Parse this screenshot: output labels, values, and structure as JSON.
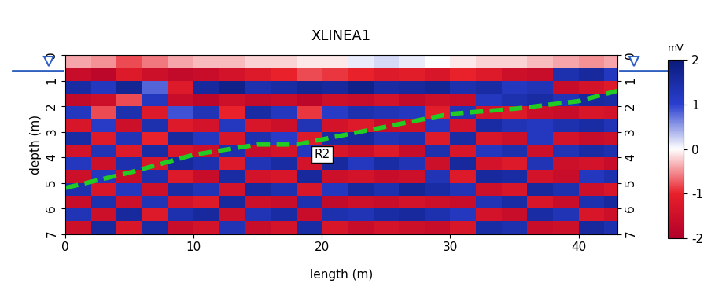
{
  "chart_data": {
    "type": "heatmap",
    "title": "XLINEA1",
    "x_label": "length (m)",
    "y_label": "depth (m)",
    "xlim": [
      0,
      43
    ],
    "xticks": [
      0,
      10,
      20,
      30,
      40
    ],
    "ylim": [
      7,
      0
    ],
    "yticks": [
      0,
      1,
      2,
      3,
      4,
      5,
      6,
      7
    ],
    "x": [
      1,
      3,
      5,
      7,
      9,
      11,
      13,
      15,
      17,
      19,
      21,
      23,
      25,
      27,
      29,
      31,
      33,
      35,
      37,
      39,
      41,
      43
    ],
    "y": [
      0.25,
      0.75,
      1.25,
      1.75,
      2.25,
      2.75,
      3.25,
      3.75,
      4.25,
      4.75,
      5.25,
      5.75,
      6.25,
      6.75
    ],
    "cells": [
      [
        -0.4,
        -0.5,
        -0.8,
        -0.6,
        -0.4,
        -0.3,
        -0.3,
        -0.2,
        -0.2,
        -0.1,
        -0.1,
        0.1,
        0.2,
        0.1,
        0.0,
        -0.1,
        -0.2,
        -0.2,
        -0.3,
        -0.4,
        -0.5,
        -0.4
      ],
      [
        -1.6,
        -1.8,
        -1.2,
        -1.5,
        -1.7,
        -1.6,
        -1.4,
        -1.2,
        -1.0,
        -0.8,
        -0.9,
        -1.0,
        -1.2,
        -1.1,
        -1.3,
        -1.0,
        -1.2,
        -1.5,
        -1.6,
        1.4,
        1.6,
        1.2
      ],
      [
        1.5,
        1.2,
        1.7,
        0.8,
        -1.2,
        1.6,
        1.8,
        1.4,
        1.5,
        1.7,
        1.6,
        1.8,
        1.5,
        1.6,
        1.7,
        1.4,
        1.5,
        1.2,
        1.3,
        -1.6,
        -1.4,
        -1.2
      ],
      [
        -1.7,
        -1.5,
        -0.8,
        1.2,
        -1.6,
        -1.8,
        -1.5,
        -1.7,
        -1.6,
        -1.8,
        -1.5,
        -1.6,
        -1.4,
        -1.7,
        -1.5,
        -1.6,
        1.2,
        1.4,
        1.5,
        1.3,
        1.6,
        1.5
      ],
      [
        1.2,
        -0.8,
        1.4,
        -1.2,
        0.9,
        1.3,
        -1.0,
        1.5,
        1.2,
        -0.9,
        1.1,
        1.4,
        1.3,
        1.2,
        -1.1,
        1.3,
        -1.4,
        -1.2,
        -1.5,
        -1.6,
        -1.3,
        -1.4
      ],
      [
        -1.3,
        1.1,
        -1.5,
        1.4,
        -1.2,
        -1.4,
        1.2,
        -1.3,
        -1.5,
        1.3,
        -1.4,
        -1.2,
        -1.6,
        -1.5,
        1.2,
        -1.4,
        1.5,
        1.3,
        1.2,
        1.4,
        1.5,
        1.3
      ],
      [
        1.5,
        -1.2,
        1.3,
        -1.0,
        1.6,
        1.2,
        -1.3,
        1.4,
        1.1,
        -1.2,
        1.5,
        1.6,
        1.3,
        1.4,
        -1.2,
        1.5,
        -1.3,
        -1.5,
        1.2,
        -1.4,
        -1.6,
        -1.5
      ],
      [
        -1.4,
        1.3,
        -1.2,
        1.5,
        -1.3,
        -1.5,
        1.4,
        -1.6,
        -1.4,
        1.2,
        -1.3,
        -1.5,
        -1.2,
        -1.6,
        1.4,
        -1.3,
        1.2,
        1.4,
        -1.5,
        1.3,
        1.5,
        1.4
      ],
      [
        1.2,
        -1.5,
        1.4,
        -1.3,
        1.6,
        1.4,
        -1.2,
        1.3,
        1.5,
        -1.4,
        1.6,
        1.2,
        1.5,
        1.3,
        -1.5,
        1.6,
        -1.4,
        -1.2,
        1.3,
        -1.5,
        -1.4,
        -1.6
      ],
      [
        -1.5,
        1.2,
        -1.6,
        1.4,
        -1.2,
        -1.6,
        1.5,
        -1.4,
        -1.3,
        1.6,
        -1.5,
        -1.4,
        -1.6,
        -1.5,
        1.3,
        -1.2,
        1.6,
        1.5,
        -1.4,
        -1.6,
        1.2,
        1.4
      ],
      [
        1.4,
        -1.3,
        1.2,
        -1.5,
        1.5,
        1.3,
        -1.4,
        1.6,
        1.4,
        -1.3,
        1.2,
        1.6,
        1.4,
        1.7,
        1.5,
        1.3,
        -1.5,
        -1.3,
        1.6,
        1.4,
        -1.5,
        -1.3
      ],
      [
        -1.6,
        1.4,
        -1.5,
        1.3,
        -1.4,
        -1.2,
        1.6,
        -1.5,
        -1.6,
        1.4,
        -1.7,
        -1.5,
        -1.6,
        -1.4,
        -1.5,
        -1.6,
        1.3,
        1.5,
        -1.3,
        -1.6,
        1.4,
        1.6
      ],
      [
        1.3,
        -1.5,
        1.6,
        -1.2,
        1.4,
        1.6,
        -1.5,
        1.3,
        1.5,
        -1.6,
        1.4,
        1.3,
        1.5,
        1.6,
        1.4,
        1.2,
        -1.4,
        -1.6,
        1.5,
        1.3,
        -1.3,
        -1.5
      ],
      [
        -1.5,
        1.6,
        -1.3,
        1.5,
        -1.6,
        -1.4,
        1.3,
        -1.6,
        -1.4,
        1.5,
        -1.3,
        -1.6,
        -1.4,
        -1.5,
        -1.6,
        -1.3,
        1.5,
        1.4,
        -1.6,
        -1.5,
        1.6,
        1.4
      ]
    ],
    "colorbar": {
      "label": "mV",
      "lim": [
        -2,
        2
      ],
      "ticks": [
        -2,
        -1,
        0,
        1,
        2
      ]
    },
    "water_table": 0.6,
    "reflector": {
      "label": "R2",
      "label_x": 20,
      "label_y": 3.9,
      "color": "#22cc22",
      "line_style": "dashed",
      "x": [
        0,
        5,
        10,
        15,
        18,
        25,
        30,
        35,
        40,
        43
      ],
      "y": [
        5.2,
        4.6,
        3.9,
        3.5,
        3.5,
        2.8,
        2.3,
        2.1,
        1.8,
        1.4
      ]
    }
  }
}
